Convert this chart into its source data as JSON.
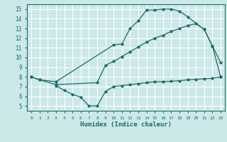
{
  "xlabel": "Humidex (Indice chaleur)",
  "xlim": [
    -0.5,
    23.5
  ],
  "ylim": [
    4.5,
    15.5
  ],
  "xticks": [
    0,
    1,
    2,
    3,
    4,
    5,
    6,
    7,
    8,
    9,
    10,
    11,
    12,
    13,
    14,
    15,
    16,
    17,
    18,
    19,
    20,
    21,
    22,
    23
  ],
  "yticks": [
    5,
    6,
    7,
    8,
    9,
    10,
    11,
    12,
    13,
    14,
    15
  ],
  "bg_color": "#cce8e8",
  "line_color": "#1a6b6b",
  "grid_color": "#ffffff",
  "curves": [
    {
      "x": [
        0,
        1,
        3,
        10,
        11,
        12,
        13,
        14,
        15,
        16,
        17,
        18,
        19,
        21,
        22,
        23
      ],
      "y": [
        8.0,
        7.7,
        7.5,
        11.3,
        11.4,
        13.0,
        13.8,
        14.9,
        14.9,
        15.0,
        15.0,
        14.8,
        14.2,
        12.9,
        11.2,
        9.5
      ]
    },
    {
      "x": [
        0,
        1,
        3,
        8,
        9,
        10,
        11,
        12,
        13,
        14,
        15,
        16,
        17,
        18,
        19,
        20,
        21,
        22,
        23
      ],
      "y": [
        8.0,
        7.7,
        7.2,
        7.4,
        9.2,
        9.6,
        10.1,
        10.6,
        11.1,
        11.6,
        12.0,
        12.3,
        12.7,
        13.0,
        13.3,
        13.5,
        12.9,
        11.2,
        8.0
      ]
    },
    {
      "x": [
        3,
        4,
        5,
        6,
        7,
        8,
        9,
        10,
        11,
        12,
        13,
        14,
        15,
        16,
        17,
        18,
        19,
        20,
        21,
        22,
        23
      ],
      "y": [
        7.1,
        6.6,
        6.2,
        5.9,
        5.0,
        5.0,
        6.5,
        7.0,
        7.1,
        7.2,
        7.3,
        7.4,
        7.5,
        7.5,
        7.55,
        7.6,
        7.7,
        7.75,
        7.8,
        7.85,
        8.0
      ]
    }
  ]
}
